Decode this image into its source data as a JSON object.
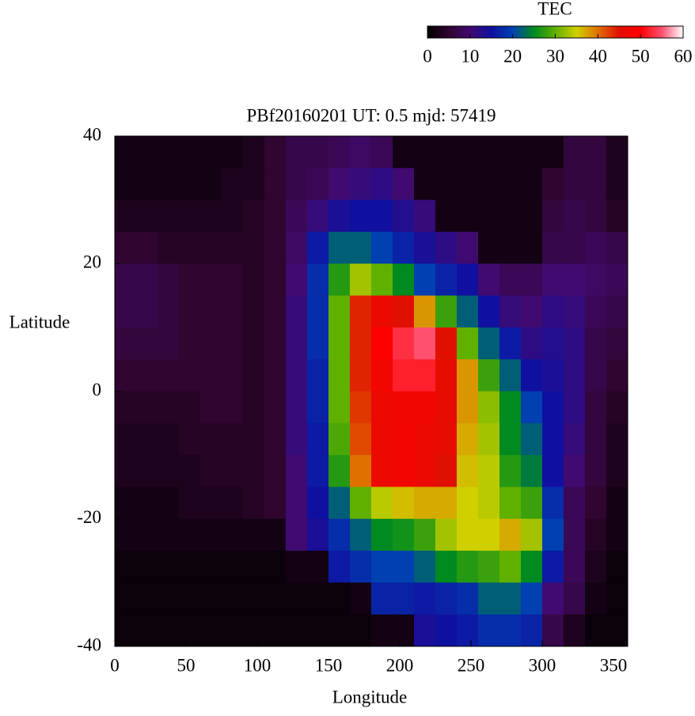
{
  "chart_data": {
    "type": "heatmap",
    "title": "PBf20160201  UT: 0.5  mjd: 57419",
    "xlabel": "Longitude",
    "ylabel": "Latitude",
    "x": [
      7.5,
      22.5,
      37.5,
      52.5,
      67.5,
      82.5,
      97.5,
      112.5,
      127.5,
      142.5,
      157.5,
      172.5,
      187.5,
      202.5,
      217.5,
      232.5,
      247.5,
      262.5,
      277.5,
      292.5,
      307.5,
      322.5,
      337.5,
      352.5
    ],
    "y": [
      37.5,
      32.5,
      27.5,
      22.5,
      17.5,
      12.5,
      7.5,
      2.5,
      -2.5,
      -7.5,
      -12.5,
      -17.5,
      -22.5,
      -27.5,
      -32.5,
      -37.5
    ],
    "z": [
      [
        2,
        2,
        2,
        2,
        2,
        2,
        3,
        5,
        7,
        7,
        8,
        9,
        8,
        2,
        2,
        2,
        2,
        2,
        2,
        2,
        2,
        6,
        6,
        3
      ],
      [
        2,
        2,
        2,
        2,
        2,
        3,
        3,
        5,
        7,
        8,
        10,
        11,
        12,
        10,
        2,
        2,
        2,
        2,
        2,
        2,
        5,
        6,
        6,
        3
      ],
      [
        3,
        3,
        3,
        3,
        3,
        3,
        4,
        5,
        8,
        11,
        14,
        15,
        15,
        13,
        11,
        2,
        2,
        2,
        2,
        2,
        6,
        7,
        6,
        4
      ],
      [
        5,
        5,
        4,
        4,
        4,
        4,
        4,
        5,
        9,
        16,
        22,
        22,
        20,
        17,
        14,
        12,
        10,
        2,
        2,
        2,
        7,
        7,
        8,
        7
      ],
      [
        7,
        7,
        6,
        5,
        5,
        5,
        4,
        5,
        10,
        18,
        27,
        33,
        30,
        25,
        20,
        17,
        15,
        10,
        8,
        8,
        10,
        10,
        9,
        8
      ],
      [
        7,
        7,
        6,
        5,
        5,
        5,
        4,
        5,
        11,
        18,
        30,
        44,
        47,
        45,
        38,
        28,
        22,
        15,
        11,
        10,
        12,
        11,
        8,
        7
      ],
      [
        6,
        6,
        6,
        5,
        5,
        5,
        4,
        5,
        11,
        18,
        30,
        44,
        50,
        53,
        55,
        45,
        30,
        22,
        16,
        12,
        13,
        12,
        7,
        6
      ],
      [
        5,
        5,
        5,
        5,
        5,
        5,
        4,
        5,
        11,
        17,
        30,
        44,
        48,
        52,
        52,
        46,
        38,
        28,
        22,
        15,
        14,
        12,
        7,
        5
      ],
      [
        4,
        4,
        4,
        4,
        5,
        5,
        4,
        5,
        11,
        17,
        30,
        43,
        47,
        48,
        48,
        46,
        38,
        32,
        25,
        20,
        15,
        12,
        6,
        4
      ],
      [
        3,
        3,
        3,
        4,
        4,
        4,
        4,
        5,
        11,
        16,
        29,
        42,
        47,
        48,
        47,
        46,
        37,
        33,
        25,
        22,
        15,
        11,
        6,
        3
      ],
      [
        3,
        3,
        3,
        3,
        4,
        4,
        4,
        5,
        10,
        16,
        27,
        40,
        47,
        48,
        47,
        45,
        36,
        34,
        27,
        24,
        15,
        10,
        6,
        3
      ],
      [
        2,
        2,
        2,
        3,
        3,
        3,
        4,
        5,
        10,
        15,
        22,
        30,
        34,
        36,
        37,
        37,
        35,
        34,
        30,
        28,
        18,
        8,
        5,
        2
      ],
      [
        2,
        2,
        2,
        2,
        2,
        2,
        2,
        2,
        10,
        14,
        18,
        22,
        25,
        26,
        28,
        33,
        35,
        35,
        37,
        33,
        20,
        8,
        4,
        2
      ],
      [
        1,
        1,
        1,
        1,
        1,
        1,
        1,
        1,
        2,
        2,
        16,
        18,
        20,
        20,
        22,
        25,
        27,
        28,
        30,
        25,
        16,
        8,
        3,
        1
      ],
      [
        1,
        1,
        1,
        1,
        1,
        1,
        1,
        1,
        1,
        1,
        1,
        2,
        17,
        17,
        16,
        17,
        18,
        22,
        22,
        20,
        10,
        7,
        2,
        1
      ],
      [
        1,
        1,
        1,
        1,
        1,
        1,
        1,
        1,
        1,
        1,
        1,
        1,
        2,
        2,
        14,
        15,
        16,
        18,
        18,
        17,
        7,
        3,
        1,
        1
      ]
    ],
    "xlim": [
      0,
      360
    ],
    "xticks": [
      0,
      50,
      100,
      150,
      200,
      250,
      300,
      350
    ],
    "ylim": [
      -40,
      40
    ],
    "yticks": [
      -40,
      -20,
      0,
      20,
      40
    ],
    "colorbar": {
      "title": "TEC",
      "lim": [
        0,
        60
      ],
      "ticks": [
        0,
        10,
        20,
        30,
        40,
        50,
        60
      ]
    },
    "colormap": {
      "stops": [
        0,
        5,
        10,
        15,
        20,
        25,
        30,
        35,
        40,
        45,
        50,
        55,
        60
      ],
      "colors": [
        "#000000",
        "#300530",
        "#400a70",
        "#1010a0",
        "#0040b0",
        "#008a20",
        "#60b000",
        "#d0d000",
        "#e07000",
        "#e01000",
        "#ff0000",
        "#ff5070",
        "#ffffff"
      ]
    }
  }
}
